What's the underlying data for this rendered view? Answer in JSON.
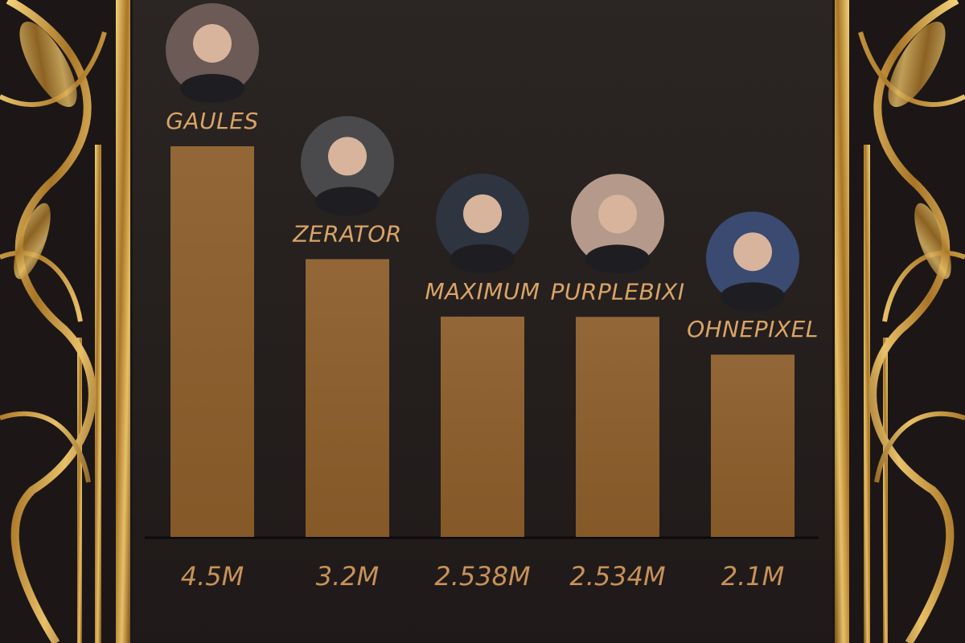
{
  "chart_data": {
    "type": "bar",
    "categories": [
      "GAULES",
      "ZERATOR",
      "MAXIMUM",
      "PURPLEBIXI",
      "OHNEPIXEL"
    ],
    "values": [
      4500000,
      3200000,
      2538000,
      2534000,
      2100000
    ],
    "value_labels": [
      "4.5M",
      "3.2M",
      "2.538M",
      "2.534M",
      "2.1M"
    ],
    "color": "#8c5d2a"
  }
}
